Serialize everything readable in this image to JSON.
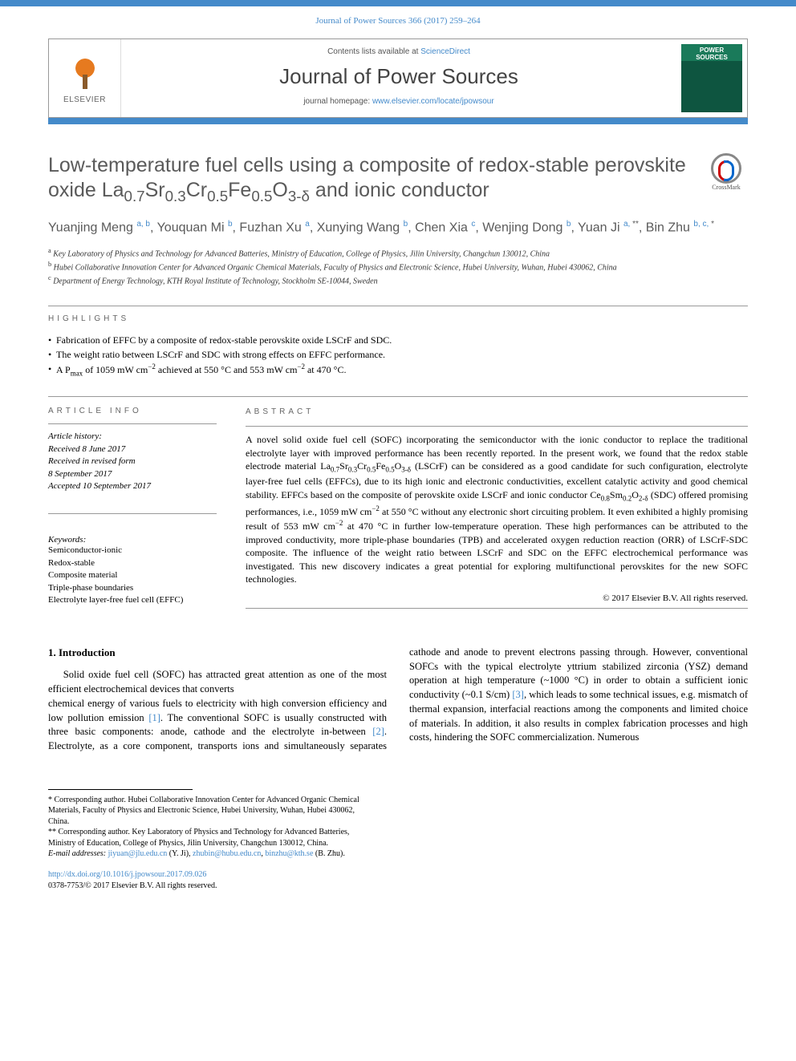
{
  "colors": {
    "accent": "#448aca",
    "title_gray": "#5a5a5a",
    "rule_gray": "#999999",
    "cover_green_top": "#1a7a5a",
    "cover_green_bot": "#0e5540",
    "elsevier_orange": "#e67a1f"
  },
  "citation": "Journal of Power Sources 366 (2017) 259–264",
  "header": {
    "elsevier_label": "ELSEVIER",
    "contents_prefix": "Contents lists available at ",
    "contents_link": "ScienceDirect",
    "journal_name": "Journal of Power Sources",
    "homepage_prefix": "journal homepage: ",
    "homepage_link": "www.elsevier.com/locate/jpowsour",
    "cover_title": "POWER SOURCES"
  },
  "title_html": "Low-temperature fuel cells using a composite of redox-stable perovskite oxide La<sub>0.7</sub>Sr<sub>0.3</sub>Cr<sub>0.5</sub>Fe<sub>0.5</sub>O<sub>3-δ</sub> and ionic conductor",
  "crossmark_label": "CrossMark",
  "authors_html": "Yuanjing Meng <sup>a, b</sup>, Youquan Mi <sup>b</sup>, Fuzhan Xu <sup>a</sup>, Xunying Wang <sup>b</sup>, Chen Xia <sup>c</sup>, Wenjing Dong <sup>b</sup>, Yuan Ji <sup>a, <span class='sup-plain'>**</span></sup>, Bin Zhu <sup>b, c, <span class='sup-plain'>*</span></sup>",
  "affiliations": [
    {
      "key": "a",
      "text": "Key Laboratory of Physics and Technology for Advanced Batteries, Ministry of Education, College of Physics, Jilin University, Changchun 130012, China"
    },
    {
      "key": "b",
      "text": "Hubei Collaborative Innovation Center for Advanced Organic Chemical Materials, Faculty of Physics and Electronic Science, Hubei University, Wuhan, Hubei 430062, China"
    },
    {
      "key": "c",
      "text": "Department of Energy Technology, KTH Royal Institute of Technology, Stockholm SE-10044, Sweden"
    }
  ],
  "highlights_label": "HIGHLIGHTS",
  "highlights_html": [
    "Fabrication of EFFC by a composite of redox-stable perovskite oxide LSCrF and SDC.",
    "The weight ratio between LSCrF and SDC with strong effects on EFFC performance.",
    "A P<sub>max</sub> of 1059 mW cm<sup class='chem'>−2</sup> achieved at 550 °C and 553 mW cm<sup class='chem'>−2</sup> at 470 °C."
  ],
  "article_info_label": "ARTICLE INFO",
  "abstract_label": "ABSTRACT",
  "history": {
    "heading": "Article history:",
    "received": "Received 8 June 2017",
    "revised_l1": "Received in revised form",
    "revised_l2": "8 September 2017",
    "accepted": "Accepted 10 September 2017"
  },
  "keywords_heading": "Keywords:",
  "keywords": [
    "Semiconductor-ionic",
    "Redox-stable",
    "Composite material",
    "Triple-phase boundaries",
    "Electrolyte layer-free fuel cell (EFFC)"
  ],
  "abstract_html": "A novel solid oxide fuel cell (SOFC) incorporating the semiconductor with the ionic conductor to replace the traditional electrolyte layer with improved performance has been recently reported. In the present work, we found that the redox stable electrode material La<sub>0.7</sub>Sr<sub>0.3</sub>Cr<sub>0.5</sub>Fe<sub>0.5</sub>O<sub>3-δ</sub> (LSCrF) can be considered as a good candidate for such configuration, electrolyte layer-free fuel cells (EFFCs), due to its high ionic and electronic conductivities, excellent catalytic activity and good chemical stability. EFFCs based on the composite of perovskite oxide LSCrF and ionic conductor Ce<sub>0.8</sub>Sm<sub>0.2</sub>O<sub>2-δ</sub> (SDC) offered promising performances, i.e., 1059 mW cm<sup class='chem'>−2</sup> at 550 °C without any electronic short circuiting problem. It even exhibited a highly promising result of 553 mW cm<sup class='chem'>−2</sup> at 470 °C in further low-temperature operation. These high performances can be attributed to the improved conductivity, more triple-phase boundaries (TPB) and accelerated oxygen reduction reaction (ORR) of LSCrF-SDC composite. The influence of the weight ratio between LSCrF and SDC on the EFFC electrochemical performance was investigated. This new discovery indicates a great potential for exploring multifunctional perovskites for the new SOFC technologies.",
  "copyright": "© 2017 Elsevier B.V. All rights reserved.",
  "intro_heading": "1. Introduction",
  "intro_para1": "Solid oxide fuel cell (SOFC) has attracted great attention as one of the most efficient electrochemical devices that converts",
  "intro_para2_html": "chemical energy of various fuels to electricity with high conversion efficiency and low pollution emission <a class='ref' href='#'>[1]</a>. The conventional SOFC is usually constructed with three basic components: anode, cathode and the electrolyte in-between <a class='ref' href='#'>[2]</a>. Electrolyte, as a core component, transports ions and simultaneously separates cathode and anode to prevent electrons passing through. However, conventional SOFCs with the typical electrolyte yttrium stabilized zirconia (YSZ) demand operation at high temperature (~1000 °C) in order to obtain a sufficient ionic conductivity (~0.1 S/cm) <a class='ref' href='#'>[3]</a>, which leads to some technical issues, e.g. mismatch of thermal expansion, interfacial reactions among the components and limited choice of materials. In addition, it also results in complex fabrication processes and high costs, hindering the SOFC commercialization. Numerous",
  "footnotes": {
    "corr1": "* Corresponding author. Hubei Collaborative Innovation Center for Advanced Organic Chemical Materials, Faculty of Physics and Electronic Science, Hubei University, Wuhan, Hubei 430062, China.",
    "corr2": "** Corresponding author. Key Laboratory of Physics and Technology for Advanced Batteries, Ministry of Education, College of Physics, Jilin University, Changchun 130012, China.",
    "email_label": "E-mail addresses:",
    "emails_html": "<a href='#'>jiyuan@jlu.edu.cn</a> (Y. Ji), <a href='#'>zhubin@hubu.edu.cn</a>, <a href='#'>binzhu@kth.se</a> (B. Zhu)."
  },
  "doi": {
    "url": "http://dx.doi.org/10.1016/j.jpowsour.2017.09.026",
    "issn_line": "0378-7753/© 2017 Elsevier B.V. All rights reserved."
  }
}
